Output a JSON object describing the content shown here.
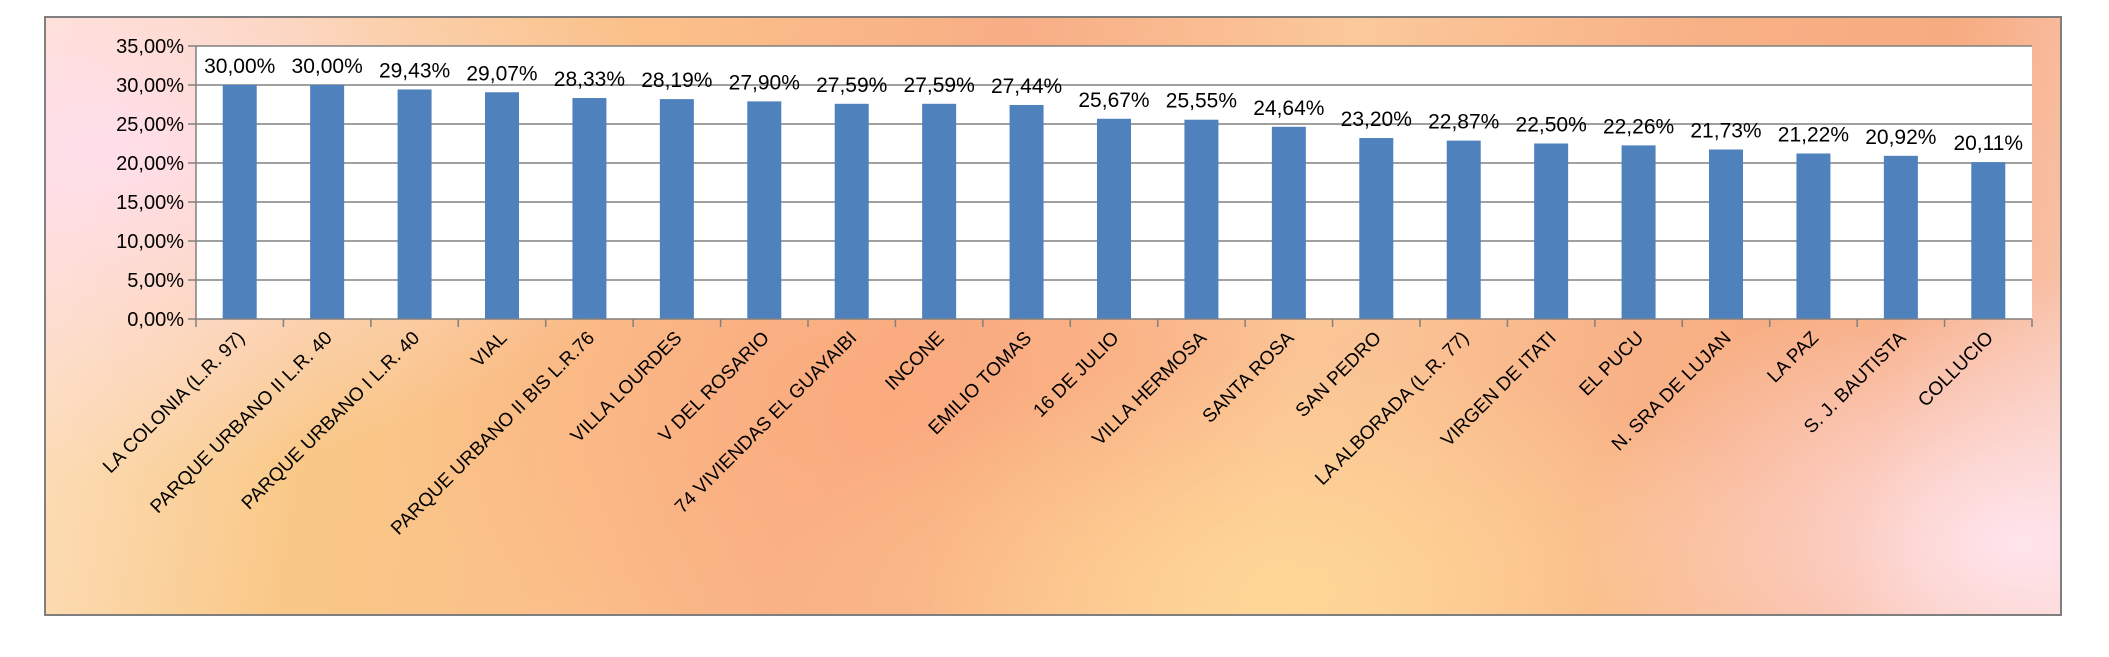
{
  "chart_data": {
    "type": "bar",
    "categories": [
      "LA COLONIA (L.R. 97)",
      "PARQUE URBANO II L.R. 40",
      "PARQUE URBANO I L.R. 40",
      "VIAL",
      "PARQUE URBANO II BIS L.R.76",
      "VILLA LOURDES",
      "V DEL ROSARIO",
      "74 VIVIENDAS EL GUAYAIBI",
      "INCONE",
      "EMILIO TOMAS",
      "16 DE JULIO",
      "VILLA HERMOSA",
      "SANTA ROSA",
      "SAN PEDRO",
      "LA ALBORADA (L.R. 77)",
      "VIRGEN DE ITATI",
      "EL PUCU",
      "N. SRA DE LUJAN",
      "LA PAZ",
      "S. J. BAUTISTA",
      "COLLUCIO"
    ],
    "values": [
      30.0,
      30.0,
      29.43,
      29.07,
      28.33,
      28.19,
      27.9,
      27.59,
      27.59,
      27.44,
      25.67,
      25.55,
      24.64,
      23.2,
      22.87,
      22.5,
      22.26,
      21.73,
      21.22,
      20.92,
      20.11
    ],
    "data_labels": [
      "30,00%",
      "30,00%",
      "29,43%",
      "29,07%",
      "28,33%",
      "28,19%",
      "27,90%",
      "27,59%",
      "27,59%",
      "27,44%",
      "25,67%",
      "25,55%",
      "24,64%",
      "23,20%",
      "22,87%",
      "22,50%",
      "22,26%",
      "21,73%",
      "21,22%",
      "20,92%",
      "20,11%"
    ],
    "y_ticks": [
      0,
      5,
      10,
      15,
      20,
      25,
      30,
      35
    ],
    "y_tick_labels": [
      "0,00%",
      "5,00%",
      "10,00%",
      "15,00%",
      "20,00%",
      "25,00%",
      "30,00%",
      "35,00%"
    ],
    "ylim": [
      0,
      35
    ],
    "title": "",
    "xlabel": "",
    "ylabel": "",
    "grid": true,
    "legend": "none",
    "colors": {
      "bar": "#4f81bd",
      "grid": "#808080",
      "plot_background": "#ffffff"
    }
  }
}
